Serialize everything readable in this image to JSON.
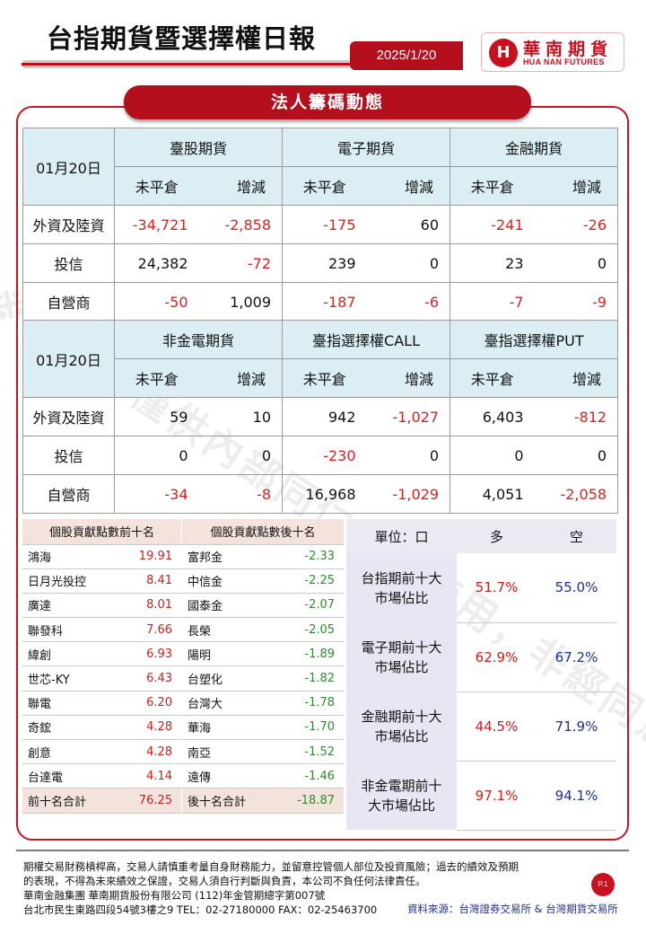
{
  "header": {
    "title": "台指期貨暨選擇權日報",
    "date": "2025/1/20",
    "logo_cn": "華南期貨",
    "logo_en": "HUA NAN FUTURES",
    "logo_mark": "H"
  },
  "banner": "法人籌碼動態",
  "watermark": "※本資料僅供內部同仁參考使用，非經同意不得轉載。",
  "table1": {
    "date": "01月20日",
    "groups": [
      "臺股期貨",
      "電子期貨",
      "金融期貨"
    ],
    "sub": [
      "未平倉",
      "增減"
    ],
    "rows": [
      {
        "label": "外資及陸資",
        "values": [
          "-34,721",
          "-2,858",
          "-175",
          "60",
          "-241",
          "-26"
        ]
      },
      {
        "label": "投信",
        "values": [
          "24,382",
          "-72",
          "239",
          "0",
          "23",
          "0"
        ]
      },
      {
        "label": "自營商",
        "values": [
          "-50",
          "1,009",
          "-187",
          "-6",
          "-7",
          "-9"
        ]
      }
    ]
  },
  "table2": {
    "date": "01月20日",
    "groups": [
      "非金電期貨",
      "臺指選擇權CALL",
      "臺指選擇權PUT"
    ],
    "sub": [
      "未平倉",
      "增減"
    ],
    "rows": [
      {
        "label": "外資及陸資",
        "values": [
          "59",
          "10",
          "942",
          "-1,027",
          "6,403",
          "-812"
        ]
      },
      {
        "label": "投信",
        "values": [
          "0",
          "0",
          "-230",
          "0",
          "0",
          "0"
        ]
      },
      {
        "label": "自營商",
        "values": [
          "-34",
          "-8",
          "16,968",
          "-1,029",
          "4,051",
          "-2,058"
        ]
      }
    ]
  },
  "top10": {
    "title": "個股貢獻點數前十名",
    "items": [
      {
        "name": "鴻海",
        "value": "19.91"
      },
      {
        "name": "日月光投控",
        "value": "8.41"
      },
      {
        "name": "廣達",
        "value": "8.01"
      },
      {
        "name": "聯發科",
        "value": "7.66"
      },
      {
        "name": "緯創",
        "value": "6.93"
      },
      {
        "name": "世芯-KY",
        "value": "6.43"
      },
      {
        "name": "聯電",
        "value": "6.20"
      },
      {
        "name": "奇鋐",
        "value": "4.28"
      },
      {
        "name": "創意",
        "value": "4.28"
      },
      {
        "name": "台達電",
        "value": "4.14"
      }
    ],
    "total_label": "前十名合計",
    "total": "76.25"
  },
  "bottom10": {
    "title": "個股貢獻點數後十名",
    "items": [
      {
        "name": "富邦金",
        "value": "-2.33"
      },
      {
        "name": "中信金",
        "value": "-2.25"
      },
      {
        "name": "國泰金",
        "value": "-2.07"
      },
      {
        "name": "長榮",
        "value": "-2.05"
      },
      {
        "name": "陽明",
        "value": "-1.89"
      },
      {
        "name": "台塑化",
        "value": "-1.82"
      },
      {
        "name": "台灣大",
        "value": "-1.78"
      },
      {
        "name": "華海",
        "value": "-1.70"
      },
      {
        "name": "南亞",
        "value": "-1.52"
      },
      {
        "name": "遠傳",
        "value": "-1.46"
      }
    ],
    "total_label": "後十名合計",
    "total": "-18.87"
  },
  "share": {
    "unit": "單位：口",
    "long": "多",
    "short": "空",
    "rows": [
      {
        "line1": "台指期前十大",
        "line2": "市場佔比",
        "long": "51.7%",
        "short": "55.0%"
      },
      {
        "line1": "電子期前十大",
        "line2": "市場佔比",
        "long": "62.9%",
        "short": "67.2%"
      },
      {
        "line1": "金融期前十大",
        "line2": "市場佔比",
        "long": "44.5%",
        "short": "71.9%"
      },
      {
        "line1": "非金電期前十",
        "line2": "大市場佔比",
        "long": "97.1%",
        "short": "94.1%"
      }
    ]
  },
  "footer": {
    "lines": [
      "期權交易財務槓桿高，交易人請慎重考量自身財務能力，並留意控管個人部位及投資風險；過去的績效及預期",
      "的表現，不得為未來績效之保證，交易人須自行判斷與負責，本公司不負任何法律責任。",
      "華南金融集團 華南期貨股份有限公司 (112)年金管期總字第007號",
      "台北市民生東路四段54號3樓之9 TEL：02-27180000  FAX：02-25463700"
    ],
    "page": "P.1",
    "source": "資料來源：台灣證券交易所 & 台灣期貨交易所"
  }
}
